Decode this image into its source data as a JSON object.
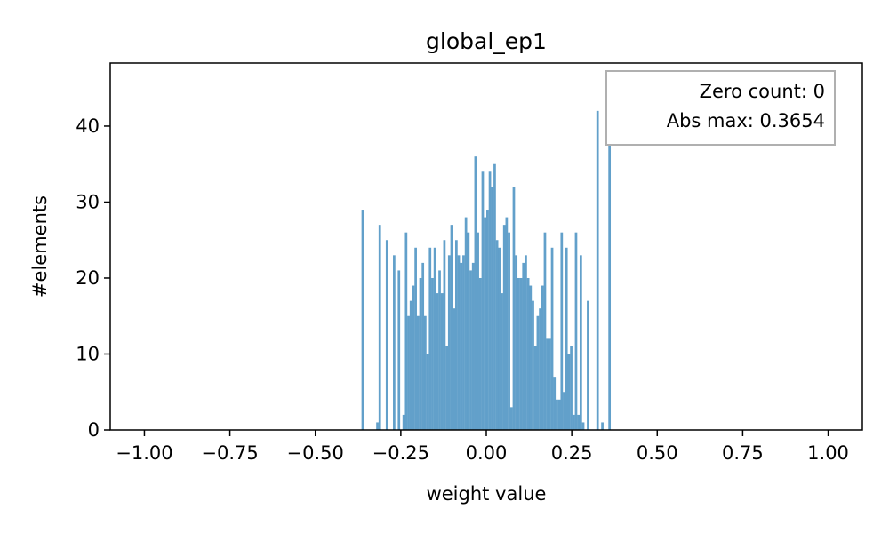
{
  "chart_data": {
    "type": "bar",
    "title": "global_ep1",
    "xlabel": "weight value",
    "ylabel": "#elements",
    "xlim": [
      -1.1,
      1.1
    ],
    "ylim": [
      0,
      48.3
    ],
    "xticks": [
      -1.0,
      -0.75,
      -0.5,
      -0.25,
      0.0,
      0.25,
      0.5,
      0.75,
      1.0
    ],
    "xtick_labels": [
      "−1.00",
      "−0.75",
      "−0.50",
      "−0.25",
      "0.00",
      "0.25",
      "0.50",
      "0.75",
      "1.00"
    ],
    "yticks": [
      0,
      10,
      20,
      30,
      40
    ],
    "ytick_labels": [
      "0",
      "10",
      "20",
      "30",
      "40"
    ],
    "bin_width": 0.0071,
    "bins": [
      [
        -0.365,
        29
      ],
      [
        -0.322,
        1
      ],
      [
        -0.315,
        27
      ],
      [
        -0.294,
        25
      ],
      [
        -0.28,
        0
      ],
      [
        -0.273,
        23
      ],
      [
        -0.259,
        21
      ],
      [
        -0.245,
        2
      ],
      [
        -0.238,
        26
      ],
      [
        -0.231,
        15
      ],
      [
        -0.224,
        17
      ],
      [
        -0.217,
        19
      ],
      [
        -0.21,
        24
      ],
      [
        -0.203,
        15
      ],
      [
        -0.196,
        20
      ],
      [
        -0.189,
        22
      ],
      [
        -0.182,
        15
      ],
      [
        -0.175,
        10
      ],
      [
        -0.168,
        24
      ],
      [
        -0.161,
        20
      ],
      [
        -0.154,
        24
      ],
      [
        -0.147,
        18
      ],
      [
        -0.14,
        21
      ],
      [
        -0.133,
        18
      ],
      [
        -0.126,
        25
      ],
      [
        -0.119,
        11
      ],
      [
        -0.112,
        23
      ],
      [
        -0.105,
        27
      ],
      [
        -0.098,
        16
      ],
      [
        -0.091,
        25
      ],
      [
        -0.084,
        23
      ],
      [
        -0.077,
        22
      ],
      [
        -0.07,
        23
      ],
      [
        -0.063,
        28
      ],
      [
        -0.056,
        26
      ],
      [
        -0.049,
        21
      ],
      [
        -0.042,
        22
      ],
      [
        -0.035,
        36
      ],
      [
        -0.028,
        26
      ],
      [
        -0.021,
        20
      ],
      [
        -0.014,
        34
      ],
      [
        -0.007,
        28
      ],
      [
        0.0,
        29
      ],
      [
        0.007,
        34
      ],
      [
        0.014,
        32
      ],
      [
        0.021,
        35
      ],
      [
        0.028,
        25
      ],
      [
        0.035,
        24
      ],
      [
        0.042,
        18
      ],
      [
        0.049,
        27
      ],
      [
        0.056,
        28
      ],
      [
        0.063,
        26
      ],
      [
        0.07,
        3
      ],
      [
        0.077,
        32
      ],
      [
        0.084,
        23
      ],
      [
        0.091,
        20
      ],
      [
        0.098,
        20
      ],
      [
        0.105,
        22
      ],
      [
        0.112,
        23
      ],
      [
        0.119,
        20
      ],
      [
        0.126,
        19
      ],
      [
        0.133,
        17
      ],
      [
        0.14,
        11
      ],
      [
        0.147,
        15
      ],
      [
        0.154,
        16
      ],
      [
        0.161,
        19
      ],
      [
        0.168,
        26
      ],
      [
        0.175,
        12
      ],
      [
        0.182,
        12
      ],
      [
        0.189,
        24
      ],
      [
        0.196,
        7
      ],
      [
        0.203,
        4
      ],
      [
        0.21,
        4
      ],
      [
        0.217,
        26
      ],
      [
        0.224,
        5
      ],
      [
        0.231,
        24
      ],
      [
        0.238,
        10
      ],
      [
        0.245,
        11
      ],
      [
        0.252,
        2
      ],
      [
        0.259,
        26
      ],
      [
        0.266,
        2
      ],
      [
        0.273,
        23
      ],
      [
        0.28,
        1
      ],
      [
        0.294,
        17
      ],
      [
        0.322,
        42
      ],
      [
        0.336,
        1
      ],
      [
        0.357,
        46
      ]
    ],
    "bar_color": "#1f77b4",
    "bar_opacity": 0.7,
    "grid": false,
    "legend_position": "top-right",
    "annotation": {
      "lines": [
        "Zero count: 0",
        "Abs max: 0.3654"
      ]
    }
  }
}
